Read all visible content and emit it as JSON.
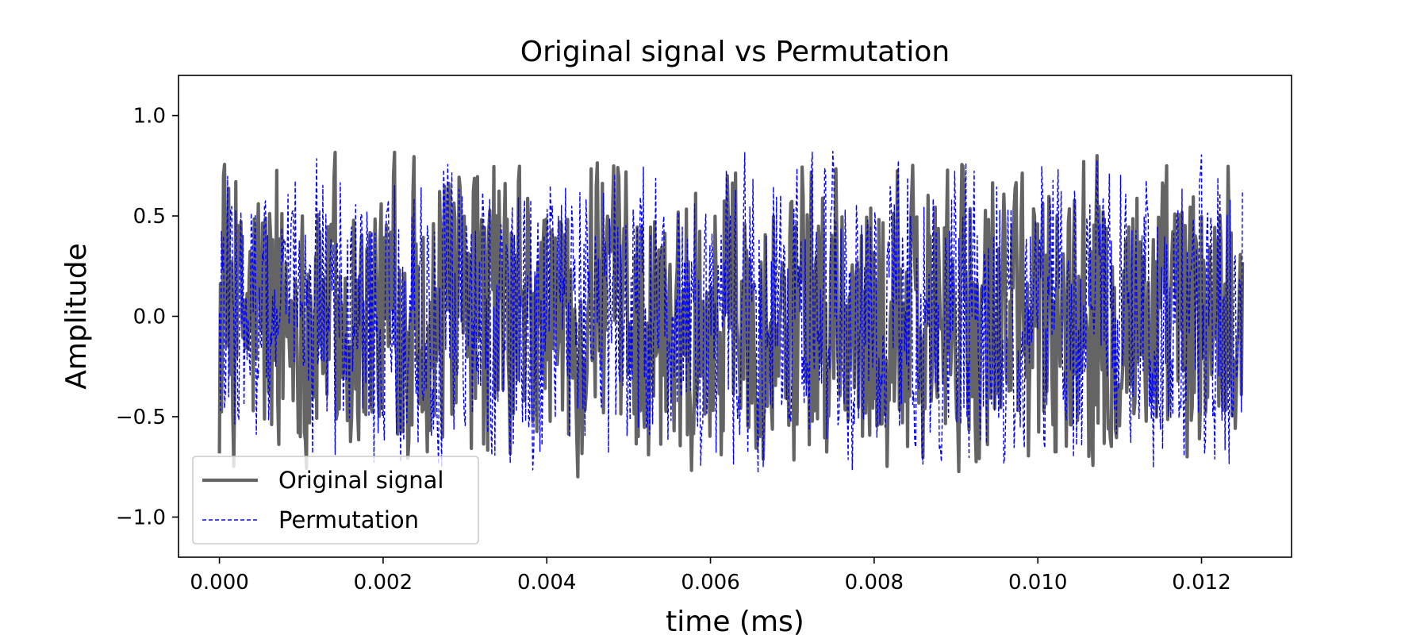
{
  "chart_data": {
    "type": "line",
    "title": "Original signal vs Permutation",
    "xlabel": "time (ms)",
    "ylabel": "Amplitude",
    "xlim": [
      -0.0005,
      0.0131
    ],
    "ylim": [
      -1.2,
      1.2
    ],
    "xticks": [
      0.0,
      0.002,
      0.004,
      0.006,
      0.008,
      0.01,
      0.012
    ],
    "xtick_labels": [
      "0.000",
      "0.002",
      "0.004",
      "0.006",
      "0.008",
      "0.010",
      "0.012"
    ],
    "yticks": [
      -1.0,
      -0.5,
      0.0,
      0.5,
      1.0
    ],
    "ytick_labels": [
      "−1.0",
      "−0.5",
      "0.0",
      "0.5",
      "1.0"
    ],
    "x_range": [
      0.0,
      0.0125
    ],
    "samples": 1000,
    "amplitude_range": [
      -0.85,
      0.87
    ],
    "grid": false,
    "legend_position": "lower-left",
    "series": [
      {
        "name": "Original signal",
        "color": "#646464",
        "style": "solid"
      },
      {
        "name": "Permutation",
        "color": "#0000ff",
        "style": "dashed"
      }
    ]
  }
}
